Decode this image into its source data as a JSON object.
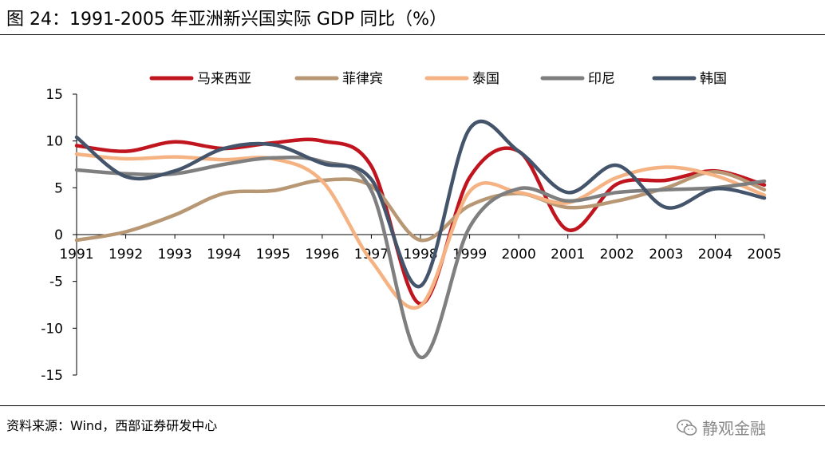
{
  "title": "图 24：1991-2005 年亚洲新兴国实际 GDP 同比（%）",
  "source": "资料来源：Wind，西部证券研发中心",
  "watermark": "静观金融",
  "chart_data": {
    "type": "line",
    "x": [
      "1991",
      "1992",
      "1993",
      "1994",
      "1995",
      "1996",
      "1997",
      "1998",
      "1999",
      "2000",
      "2001",
      "2002",
      "2003",
      "2004",
      "2005"
    ],
    "ylim": [
      -15,
      15
    ],
    "yticks": [
      15,
      10,
      5,
      0,
      -5,
      -10,
      -15
    ],
    "grid": false,
    "legend_position": "top",
    "series": [
      {
        "name": "马来西亚",
        "color": "#c0141e",
        "values": [
          9.5,
          8.9,
          9.9,
          9.2,
          9.8,
          10.0,
          7.3,
          -7.4,
          6.1,
          8.9,
          0.5,
          5.4,
          5.8,
          6.8,
          5.3
        ]
      },
      {
        "name": "菲律宾",
        "color": "#b89874",
        "values": [
          -0.6,
          0.3,
          2.1,
          4.4,
          4.7,
          5.8,
          5.2,
          -0.6,
          3.1,
          4.4,
          2.9,
          3.6,
          5.0,
          6.7,
          4.8
        ]
      },
      {
        "name": "泰国",
        "color": "#f5b383",
        "values": [
          8.6,
          8.1,
          8.3,
          8.0,
          8.1,
          5.7,
          -2.8,
          -7.6,
          4.6,
          4.5,
          3.4,
          6.1,
          7.2,
          6.3,
          4.2
        ]
      },
      {
        "name": "印尼",
        "color": "#7f7f7f",
        "values": [
          6.9,
          6.5,
          6.5,
          7.5,
          8.2,
          7.8,
          4.7,
          -13.1,
          0.8,
          4.9,
          3.6,
          4.5,
          4.8,
          5.0,
          5.7
        ]
      },
      {
        "name": "韩国",
        "color": "#44546a",
        "values": [
          10.4,
          6.2,
          6.8,
          9.2,
          9.6,
          7.6,
          5.9,
          -5.5,
          11.3,
          8.9,
          4.5,
          7.4,
          2.9,
          4.9,
          3.9
        ]
      }
    ]
  }
}
